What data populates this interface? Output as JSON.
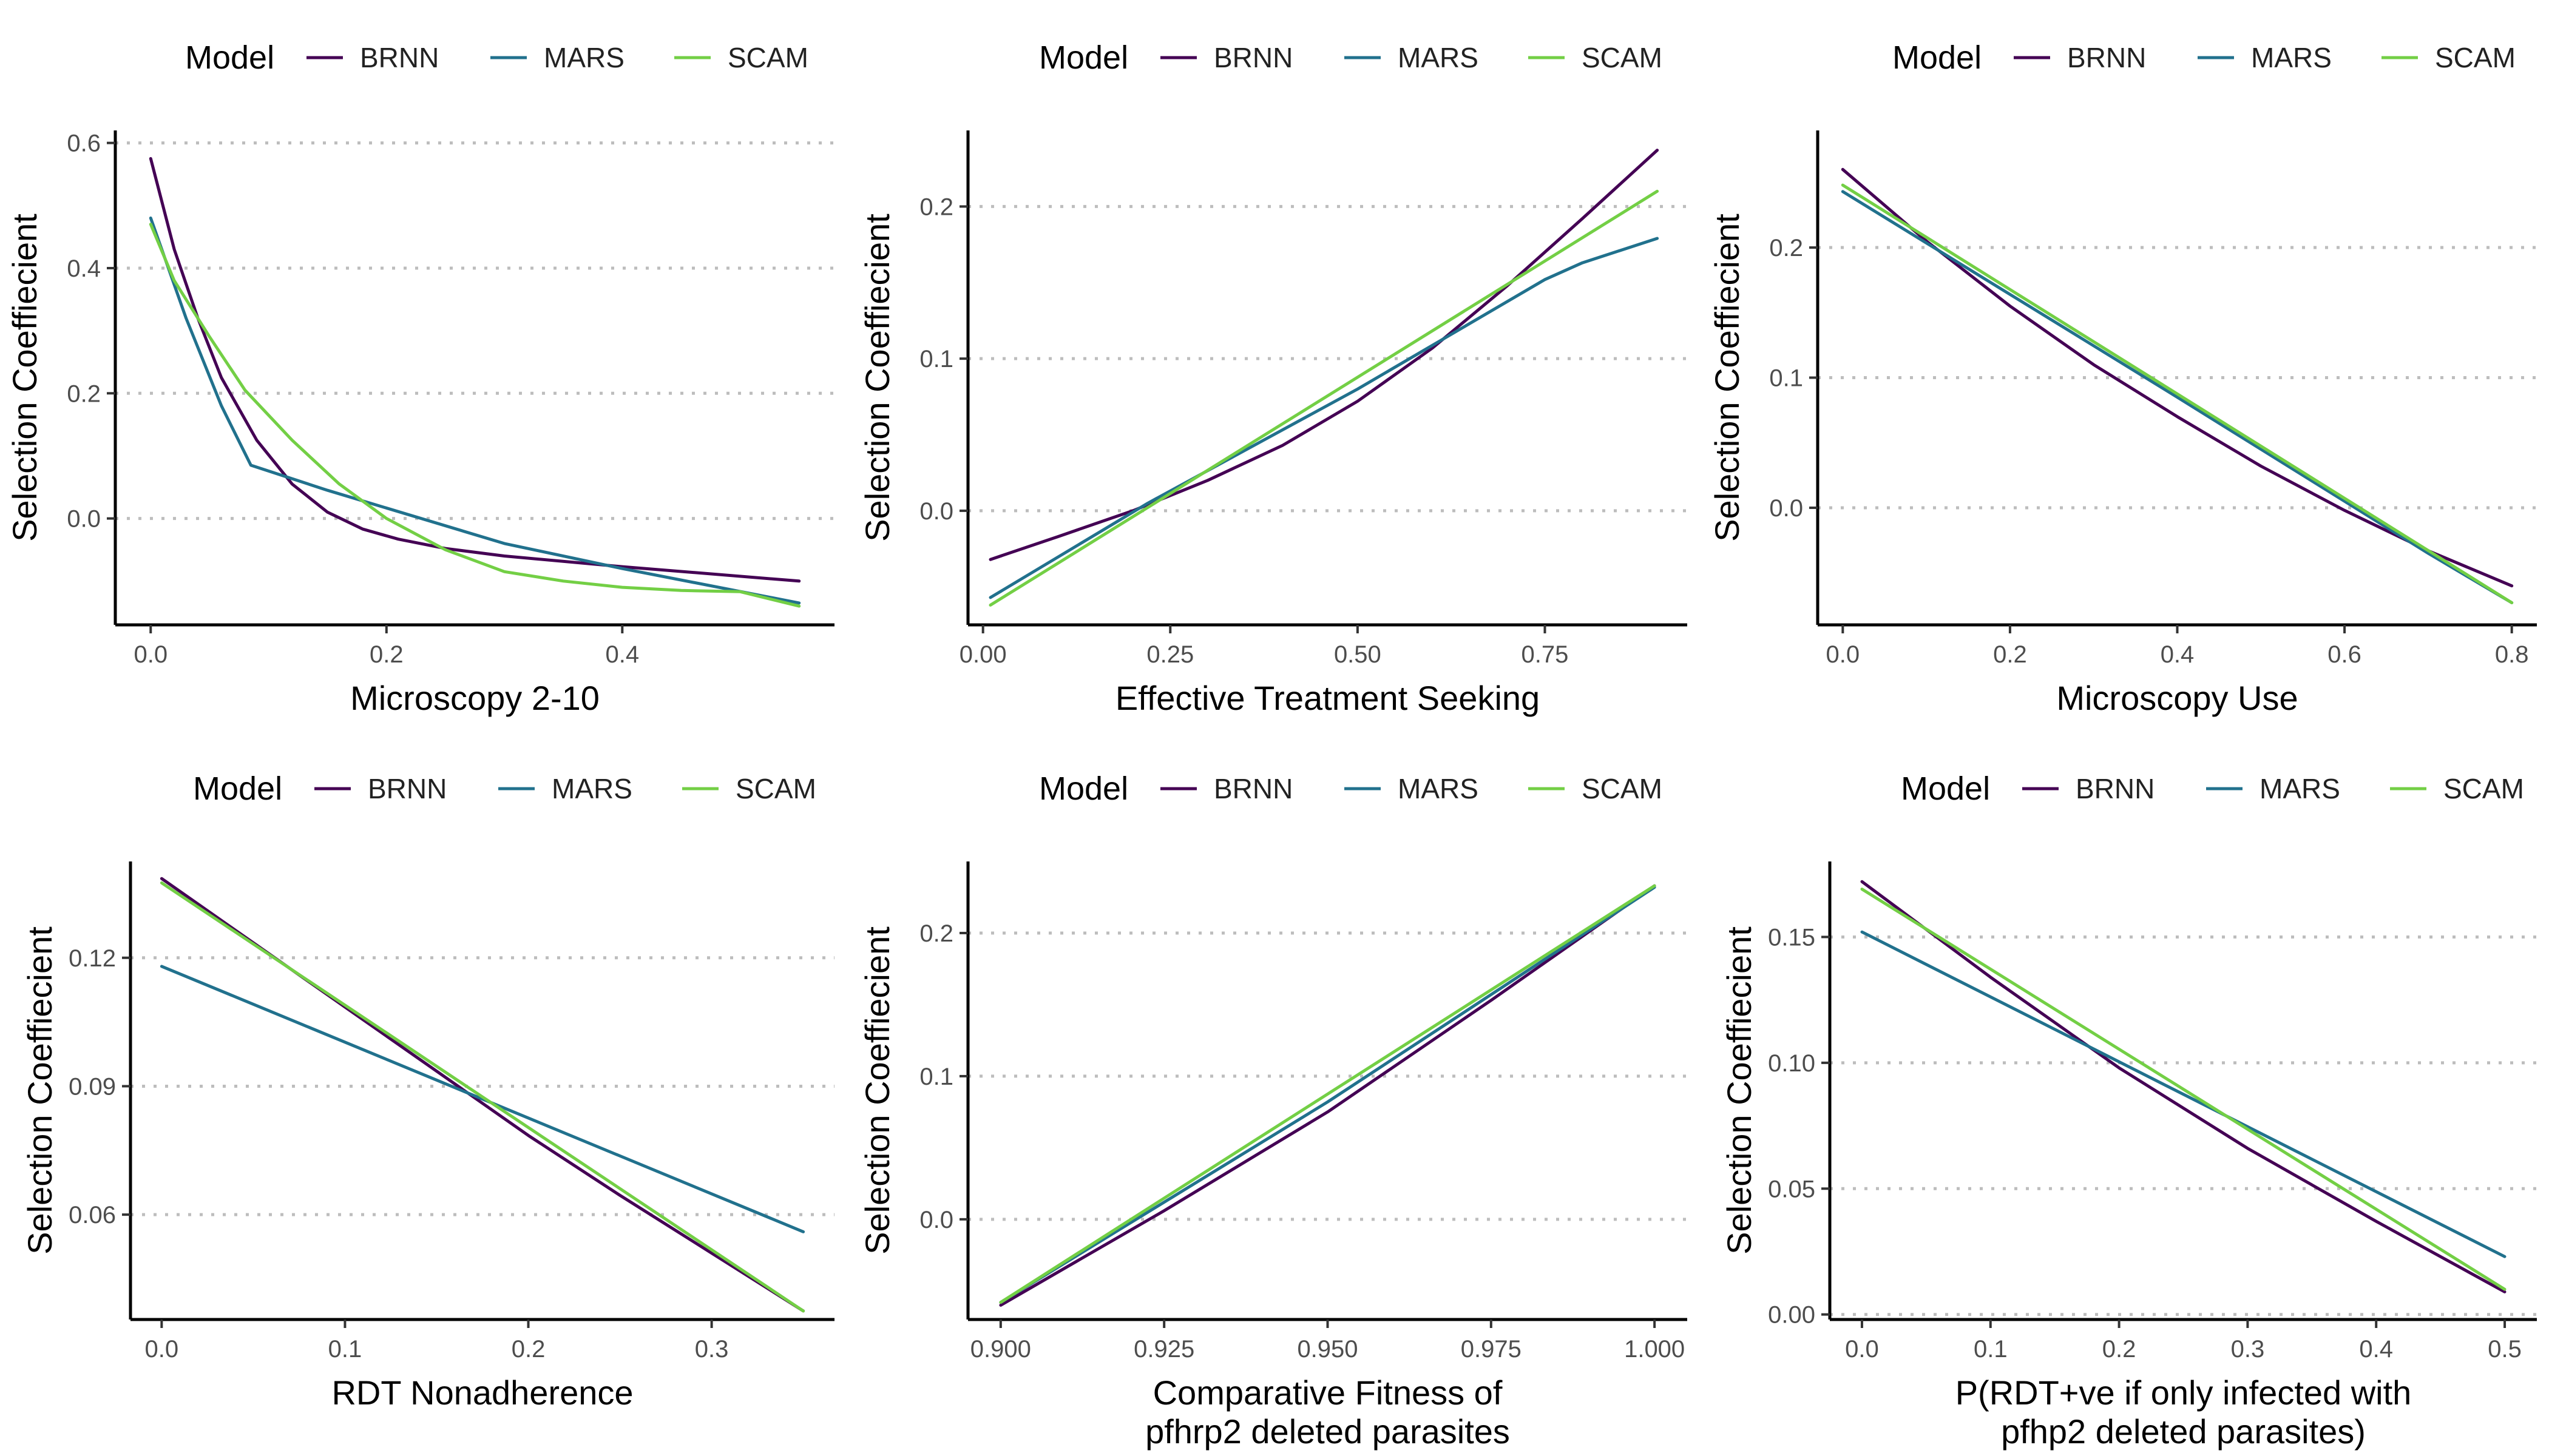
{
  "legend_title": "Model",
  "colors": {
    "BRNN": "#440154",
    "MARS": "#21718d",
    "SCAM": "#73cf45"
  },
  "chart_data": [
    {
      "type": "line",
      "xlabel": [
        "Microscopy 2-10"
      ],
      "ylabel": "Selection Coeffiecient",
      "xlim": [
        -0.03,
        0.58
      ],
      "ylim": [
        -0.17,
        0.62
      ],
      "xticks": [
        0.0,
        0.2,
        0.4
      ],
      "xtick_labels": [
        "0.0",
        "0.2",
        "0.4"
      ],
      "yticks": [
        0.0,
        0.2,
        0.4,
        0.6
      ],
      "ytick_labels": [
        "0.0",
        "0.2",
        "0.4",
        "0.6"
      ],
      "legend": {
        "placement": "top",
        "entries": [
          "BRNN",
          "MARS",
          "SCAM"
        ]
      },
      "series": [
        {
          "name": "BRNN",
          "x": [
            0.0,
            0.02,
            0.04,
            0.06,
            0.09,
            0.12,
            0.15,
            0.18,
            0.21,
            0.25,
            0.3,
            0.4,
            0.55
          ],
          "y": [
            0.575,
            0.43,
            0.32,
            0.225,
            0.125,
            0.055,
            0.01,
            -0.017,
            -0.033,
            -0.048,
            -0.06,
            -0.077,
            -0.1
          ]
        },
        {
          "name": "MARS",
          "x": [
            0.0,
            0.03,
            0.06,
            0.085,
            0.15,
            0.3,
            0.4,
            0.55
          ],
          "y": [
            0.48,
            0.32,
            0.18,
            0.085,
            0.045,
            -0.04,
            -0.08,
            -0.135
          ]
        },
        {
          "name": "SCAM",
          "x": [
            0.0,
            0.02,
            0.05,
            0.08,
            0.12,
            0.16,
            0.2,
            0.25,
            0.3,
            0.35,
            0.4,
            0.45,
            0.5,
            0.55
          ],
          "y": [
            0.47,
            0.38,
            0.29,
            0.205,
            0.125,
            0.055,
            0.0,
            -0.05,
            -0.085,
            -0.1,
            -0.11,
            -0.115,
            -0.117,
            -0.14
          ]
        }
      ]
    },
    {
      "type": "line",
      "xlabel": [
        "Effective Treatment Seeking"
      ],
      "ylabel": "Selection Coeffiecient",
      "xlim": [
        -0.02,
        0.94
      ],
      "ylim": [
        -0.075,
        0.25
      ],
      "xticks": [
        0.0,
        0.25,
        0.5,
        0.75
      ],
      "xtick_labels": [
        "0.00",
        "0.25",
        "0.50",
        "0.75"
      ],
      "yticks": [
        0.0,
        0.1,
        0.2
      ],
      "ytick_labels": [
        "0.0",
        "0.1",
        "0.2"
      ],
      "legend": {
        "placement": "top",
        "entries": [
          "BRNN",
          "MARS",
          "SCAM"
        ]
      },
      "series": [
        {
          "name": "BRNN",
          "x": [
            0.01,
            0.1,
            0.2,
            0.3,
            0.4,
            0.5,
            0.6,
            0.7,
            0.8,
            0.9
          ],
          "y": [
            -0.032,
            -0.017,
            0.0,
            0.02,
            0.043,
            0.072,
            0.107,
            0.148,
            0.192,
            0.237
          ]
        },
        {
          "name": "MARS",
          "x": [
            0.01,
            0.22,
            0.5,
            0.75,
            0.8,
            0.9
          ],
          "y": [
            -0.057,
            0.005,
            0.08,
            0.152,
            0.163,
            0.179
          ]
        },
        {
          "name": "SCAM",
          "x": [
            0.01,
            0.9
          ],
          "y": [
            -0.062,
            0.21
          ]
        }
      ]
    },
    {
      "type": "line",
      "xlabel": [
        "Microscopy Use"
      ],
      "ylabel": "Selection Coeffiecient",
      "xlim": [
        -0.03,
        0.83
      ],
      "ylim": [
        -0.09,
        0.29
      ],
      "xticks": [
        0.0,
        0.2,
        0.4,
        0.6,
        0.8
      ],
      "xtick_labels": [
        "0.0",
        "0.2",
        "0.4",
        "0.6",
        "0.8"
      ],
      "yticks": [
        0.0,
        0.1,
        0.2
      ],
      "ytick_labels": [
        "0.0",
        "0.1",
        "0.2"
      ],
      "legend": {
        "placement": "top",
        "entries": [
          "BRNN",
          "MARS",
          "SCAM"
        ]
      },
      "series": [
        {
          "name": "BRNN",
          "x": [
            0.0,
            0.1,
            0.2,
            0.3,
            0.4,
            0.5,
            0.6,
            0.7,
            0.8
          ],
          "y": [
            0.26,
            0.205,
            0.155,
            0.11,
            0.07,
            0.032,
            -0.002,
            -0.033,
            -0.06
          ]
        },
        {
          "name": "MARS",
          "x": [
            0.0,
            0.4,
            0.7,
            0.8
          ],
          "y": [
            0.243,
            0.085,
            -0.035,
            -0.073
          ]
        },
        {
          "name": "SCAM",
          "x": [
            0.0,
            0.8
          ],
          "y": [
            0.248,
            -0.073
          ]
        }
      ]
    },
    {
      "type": "line",
      "xlabel": [
        "RDT Nonadherence"
      ],
      "ylabel": "Selection Coeffiecient",
      "xlim": [
        -0.017,
        0.367
      ],
      "ylim": [
        0.0355,
        0.1425
      ],
      "xticks": [
        0.0,
        0.1,
        0.2,
        0.3
      ],
      "xtick_labels": [
        "0.0",
        "0.1",
        "0.2",
        "0.3"
      ],
      "yticks": [
        0.06,
        0.09,
        0.12
      ],
      "ytick_labels": [
        "0.06",
        "0.09",
        "0.12"
      ],
      "legend": {
        "placement": "top",
        "entries": [
          "BRNN",
          "MARS",
          "SCAM"
        ]
      },
      "series": [
        {
          "name": "BRNN",
          "x": [
            0.0,
            0.05,
            0.1,
            0.15,
            0.2,
            0.25,
            0.3,
            0.35
          ],
          "y": [
            0.1385,
            0.1235,
            0.1085,
            0.0935,
            0.0785,
            0.0645,
            0.051,
            0.0375
          ]
        },
        {
          "name": "MARS",
          "x": [
            0.0,
            0.35
          ],
          "y": [
            0.118,
            0.056
          ]
        },
        {
          "name": "SCAM",
          "x": [
            0.0,
            0.35
          ],
          "y": [
            0.1375,
            0.0375
          ]
        }
      ]
    },
    {
      "type": "line",
      "xlabel": [
        "Comparative Fitness of",
        "pfhrp2 deleted parasites"
      ],
      "ylabel": "Selection Coeffiecient",
      "xlim": [
        0.895,
        1.005
      ],
      "ylim": [
        -0.07,
        0.25
      ],
      "xticks": [
        0.9,
        0.925,
        0.95,
        0.975,
        1.0
      ],
      "xtick_labels": [
        "0.900",
        "0.925",
        "0.950",
        "0.975",
        "1.000"
      ],
      "yticks": [
        0.0,
        0.1,
        0.2
      ],
      "ytick_labels": [
        "0.0",
        "0.1",
        "0.2"
      ],
      "legend": {
        "placement": "top",
        "entries": [
          "BRNN",
          "MARS",
          "SCAM"
        ]
      },
      "series": [
        {
          "name": "BRNN",
          "x": [
            0.9,
            0.925,
            0.95,
            0.975,
            1.0
          ],
          "y": [
            -0.06,
            0.006,
            0.075,
            0.153,
            0.233
          ]
        },
        {
          "name": "MARS",
          "x": [
            0.9,
            0.95,
            1.0
          ],
          "y": [
            -0.058,
            0.082,
            0.232
          ]
        },
        {
          "name": "SCAM",
          "x": [
            0.9,
            1.0
          ],
          "y": [
            -0.058,
            0.233
          ]
        }
      ]
    },
    {
      "type": "line",
      "xlabel": [
        "P(RDT+ve if only infected with",
        "pfhp2 deleted parasites)"
      ],
      "ylabel": "Selection Coeffiecient",
      "xlim": [
        -0.025,
        0.525
      ],
      "ylim": [
        -0.002,
        0.18
      ],
      "xticks": [
        0.0,
        0.1,
        0.2,
        0.3,
        0.4,
        0.5
      ],
      "xtick_labels": [
        "0.0",
        "0.1",
        "0.2",
        "0.3",
        "0.4",
        "0.5"
      ],
      "yticks": [
        0.0,
        0.05,
        0.1,
        0.15
      ],
      "ytick_labels": [
        "0.00",
        "0.05",
        "0.10",
        "0.15"
      ],
      "legend": {
        "placement": "top",
        "entries": [
          "BRNN",
          "MARS",
          "SCAM"
        ]
      },
      "series": [
        {
          "name": "BRNN",
          "x": [
            0.0,
            0.1,
            0.2,
            0.3,
            0.4,
            0.5
          ],
          "y": [
            0.172,
            0.134,
            0.098,
            0.066,
            0.037,
            0.009
          ]
        },
        {
          "name": "MARS",
          "x": [
            0.0,
            0.5
          ],
          "y": [
            0.152,
            0.023
          ]
        },
        {
          "name": "SCAM",
          "x": [
            0.0,
            0.5
          ],
          "y": [
            0.169,
            0.01
          ]
        }
      ]
    }
  ]
}
